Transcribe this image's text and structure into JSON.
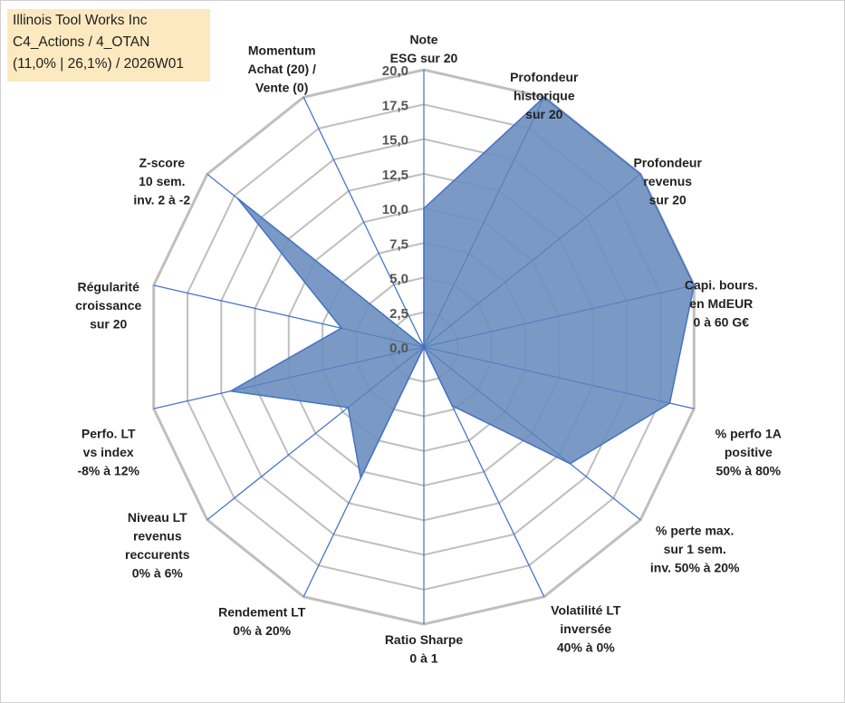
{
  "info": {
    "company": "Illinois Tool Works Inc",
    "category": "C4_Actions / 4_OTAN",
    "stats": "(11,0% | 26,1%) / 2026W01"
  },
  "colors": {
    "fill": "#6b8fbf",
    "stroke": "#4472c4",
    "grid": "#bfbfbf",
    "spoke": "#4472c4",
    "infoBox": "#fde9c0"
  },
  "chart_data": {
    "type": "radar",
    "title": "",
    "rmin": 0,
    "rmax": 20,
    "ticks": [
      "0,0",
      "2,5",
      "5,0",
      "7,5",
      "10,0",
      "12,5",
      "15,0",
      "17,5",
      "20,0"
    ],
    "axes": [
      {
        "label": [
          "Note",
          "ESG sur 20"
        ],
        "value": 10.0
      },
      {
        "label": [
          "Profondeur",
          "historique",
          "sur 20"
        ],
        "value": 20.0
      },
      {
        "label": [
          "Profondeur",
          "revenus",
          "sur 20"
        ],
        "value": 20.0
      },
      {
        "label": [
          "Capi. bours.",
          "en MdEUR",
          "0 à 60 G€"
        ],
        "value": 20.0
      },
      {
        "label": [
          "% perfo 1A",
          "positive",
          "50% à 80%"
        ],
        "value": 18.2
      },
      {
        "label": [
          "% perte max.",
          "sur 1 sem.",
          "inv. 50% à 20%"
        ],
        "value": 13.5
      },
      {
        "label": [
          "Volatilité LT",
          "inversée",
          "40% à 0%"
        ],
        "value": 4.7
      },
      {
        "label": [
          "Ratio Sharpe",
          "0 à 1"
        ],
        "value": 0.0
      },
      {
        "label": [
          "Rendement LT",
          "0% à 20%"
        ],
        "value": 10.5
      },
      {
        "label": [
          "Niveau LT",
          "revenus",
          "reccurents",
          "0% à 6%"
        ],
        "value": 7.0
      },
      {
        "label": [
          "Perfo. LT",
          "vs index",
          "-8% à 12%"
        ],
        "value": 14.3
      },
      {
        "label": [
          "Régularité",
          "croissance",
          "sur 20"
        ],
        "value": 6.1
      },
      {
        "label": [
          "Z-score",
          "10 sem.",
          "inv. 2 à -2"
        ],
        "value": 17.2
      },
      {
        "label": [
          "Momentum",
          "Achat (20) /",
          "Vente (0)"
        ],
        "value": 0.0
      }
    ]
  }
}
